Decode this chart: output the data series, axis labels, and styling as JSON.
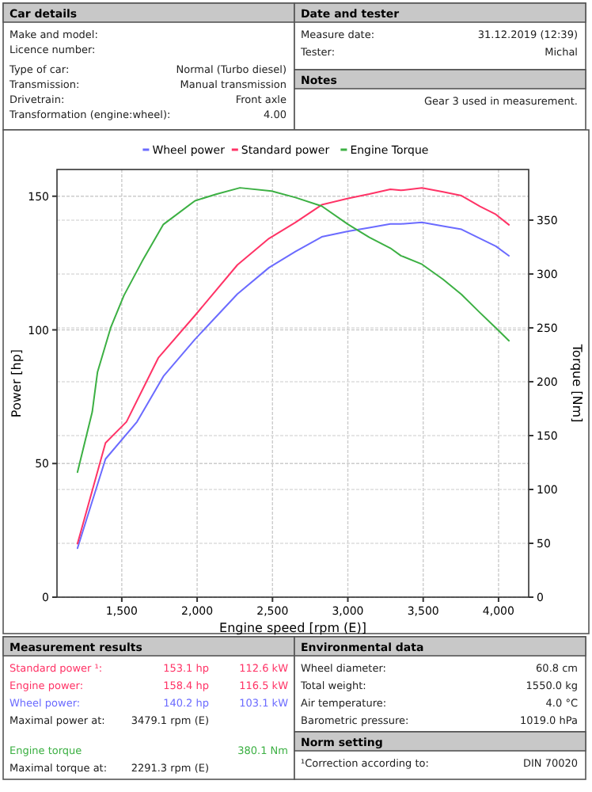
{
  "chart_data": [
    {
      "type": "other",
      "title": "Car details",
      "annotations": [
        "Make and model:",
        "Licence number:",
        "Type of car:",
        "Normal (Turbo diesel)",
        "Transmission:",
        "Manual transmission",
        "Drivetrain:",
        "Front axle",
        "Transformation (engine:wheel):",
        "4.00"
      ]
    },
    {
      "type": "other",
      "title": "Date and tester",
      "annotations": [
        "Measure date:",
        "31.12.2019 (12:39)",
        "Tester:",
        "Michal"
      ]
    },
    {
      "type": "other",
      "title": "Notes",
      "annotations": [
        "Gear 3 used in measurement."
      ]
    },
    {
      "type": "line",
      "xlabel": "Engine speed [rpm (E)]",
      "ylabel": "Power [hp]",
      "y2label": "Torque [Nm]",
      "xlim": [
        1070,
        4200
      ],
      "xticks": [
        {
          "value": 1500,
          "label": "1,500"
        },
        {
          "value": 2000,
          "label": "2,000"
        },
        {
          "value": 2500,
          "label": "2,500"
        },
        {
          "value": 3000,
          "label": "3,000"
        },
        {
          "value": 3500,
          "label": "3,500"
        },
        {
          "value": 4000,
          "label": "4,000"
        }
      ],
      "ylim": [
        0,
        160
      ],
      "yticks": [
        0,
        50,
        100,
        150
      ],
      "y2lim": [
        0,
        397
      ],
      "y2ticks": [
        0,
        50,
        100,
        150,
        200,
        250,
        300,
        350
      ],
      "grid": true,
      "legend": "top",
      "marker": "none",
      "line_style": "solid",
      "series": [
        {
          "name": "Wheel power",
          "color": "#6b6bff",
          "x": [
            1206,
            1392,
            1601,
            1776,
            1986,
            2267,
            2477,
            2652,
            2827,
            3002,
            3142,
            3282,
            3352,
            3492,
            3632,
            3754,
            3877,
            3982,
            4069
          ],
          "values": [
            18.3,
            51.7,
            65.6,
            82.6,
            96.5,
            113.4,
            123.3,
            129.3,
            134.8,
            136.9,
            138.2,
            139.6,
            139.6,
            140.2,
            138.8,
            137.6,
            134.2,
            131.3,
            127.7
          ]
        },
        {
          "name": "Standard power",
          "color": "#ff3366",
          "x": [
            1206,
            1392,
            1531,
            1742,
            1986,
            2267,
            2477,
            2652,
            2827,
            3002,
            3142,
            3282,
            3352,
            3492,
            3632,
            3754,
            3877,
            3982,
            4069
          ],
          "values": [
            20,
            57.7,
            65.6,
            89.5,
            105.4,
            124.3,
            134.2,
            140.2,
            146.8,
            149.2,
            150.8,
            152.6,
            152.2,
            153.1,
            151.6,
            150.2,
            146.2,
            143.2,
            139.3
          ]
        },
        {
          "name": "Engine Torque",
          "color": "#3cb043",
          "axis": "y2",
          "x": [
            1206,
            1304,
            1339,
            1426,
            1514,
            1636,
            1776,
            1986,
            2126,
            2284,
            2494,
            2652,
            2827,
            3002,
            3142,
            3282,
            3352,
            3492,
            3632,
            3754,
            3877,
            3982,
            4069
          ],
          "values": [
            116,
            172,
            209,
            250,
            280,
            312,
            346,
            368,
            374,
            380,
            377,
            371,
            363,
            346,
            334,
            324,
            317,
            309,
            295,
            281,
            264,
            250,
            238
          ]
        }
      ]
    },
    {
      "type": "other",
      "title": "Measurement results",
      "annotations": [
        "Standard power ¹:",
        "153.1 hp",
        "112.6 kW",
        "Engine power:",
        "158.4 hp",
        "116.5 kW",
        "Wheel power:",
        "140.2 hp",
        "103.1 kW",
        "Maximal power at:",
        "3479.1 rpm (E)",
        "Engine torque",
        "380.1 Nm",
        "Maximal torque at:",
        "2291.3 rpm (E)"
      ]
    },
    {
      "type": "other",
      "title": "Environmental data",
      "annotations": [
        "Wheel diameter:",
        "60.8 cm",
        "Total weight:",
        "1550.0 kg",
        "Air temperature:",
        "4.0 °C",
        "Barometric pressure:",
        "1019.0 hPa"
      ]
    },
    {
      "type": "other",
      "title": "Norm setting",
      "annotations": [
        "¹Correction according to:",
        "DIN 70020"
      ]
    }
  ]
}
